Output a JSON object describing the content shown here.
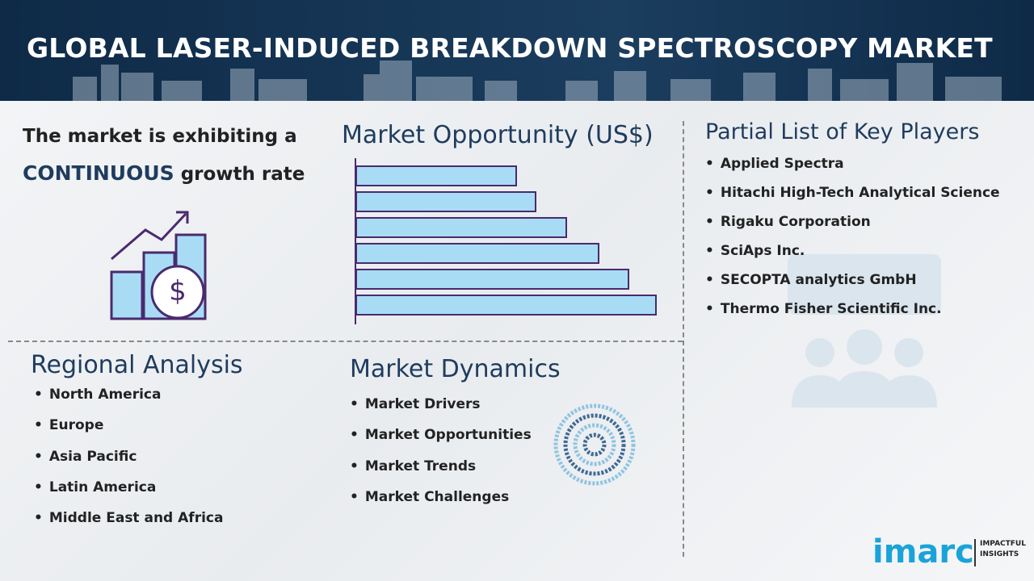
{
  "header": {
    "title": "GLOBAL LASER-INDUCED BREAKDOWN SPECTROSCOPY MARKET"
  },
  "growth": {
    "line1": "The market is exhibiting a",
    "highlight": "CONTINUOUS",
    "rest": "growth rate",
    "icon_symbol": "$"
  },
  "opportunity": {
    "title": "Market Opportunity (US$)"
  },
  "key_players": {
    "title": "Partial List of Key Players",
    "items": [
      "Applied Spectra",
      "Hitachi High-Tech Analytical Science",
      "Rigaku Corporation",
      "SciAps Inc.",
      "SECOPTA analytics GmbH",
      "Thermo Fisher Scientific Inc."
    ]
  },
  "regional": {
    "title": "Regional Analysis",
    "items": [
      "North America",
      "Europe",
      "Asia Pacific",
      "Latin America",
      "Middle East and Africa"
    ]
  },
  "dynamics": {
    "title": "Market Dynamics",
    "items": [
      "Market Drivers",
      "Market Opportunities",
      "Market Trends",
      "Market Challenges"
    ]
  },
  "logo": {
    "brand": "imarc",
    "tag1": "IMPACTFUL",
    "tag2": "INSIGHTS"
  }
}
